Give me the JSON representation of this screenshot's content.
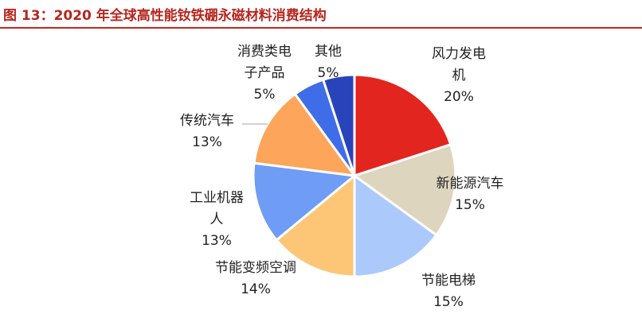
{
  "caption": "图 13：2020 年全球高性能钕铁硼永磁材料消费结构",
  "chart_data": {
    "type": "pie",
    "slices": [
      {
        "label": "风力发电机",
        "label_lines": [
          "风力发电",
          "机"
        ],
        "value": 20,
        "pct_text": "20%",
        "color": "#e3251f"
      },
      {
        "label": "新能源汽车",
        "label_lines": [
          "新能源汽车"
        ],
        "value": 15,
        "pct_text": "15%",
        "color": "#ddd5be"
      },
      {
        "label": "节能电梯",
        "label_lines": [
          "节能电梯"
        ],
        "value": 15,
        "pct_text": "15%",
        "color": "#abc9fb"
      },
      {
        "label": "节能变频空调",
        "label_lines": [
          "节能变频空调"
        ],
        "value": 14,
        "pct_text": "14%",
        "color": "#fdc677"
      },
      {
        "label": "工业机器人",
        "label_lines": [
          "工业机器",
          "人"
        ],
        "value": 13,
        "pct_text": "13%",
        "color": "#6f9cf4"
      },
      {
        "label": "传统汽车",
        "label_lines": [
          "传统汽车"
        ],
        "value": 13,
        "pct_text": "13%",
        "color": "#fda55a"
      },
      {
        "label": "消费类电子产品",
        "label_lines": [
          "消费类电",
          "子产品"
        ],
        "value": 5,
        "pct_text": "5%",
        "color": "#3f6de8"
      },
      {
        "label": "其他",
        "label_lines": [
          "其他"
        ],
        "value": 5,
        "pct_text": "5%",
        "color": "#2944bb"
      }
    ]
  }
}
